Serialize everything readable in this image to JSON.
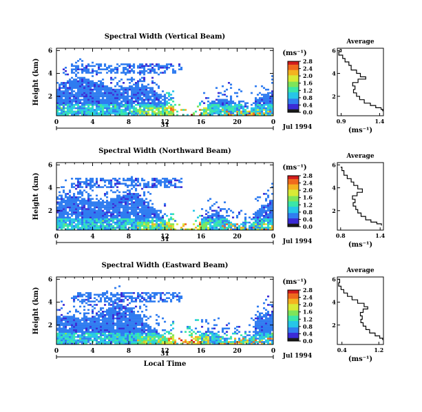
{
  "figure": {
    "xlabel": "Local Time",
    "date_label": "Jul 1994",
    "day_label": "31",
    "colorbar_unit": "(ms⁻¹)",
    "colors": {
      "colormap": [
        "#1a1a1a",
        "#3b2bd6",
        "#2f7cf0",
        "#27c6e8",
        "#39e6a8",
        "#7fe45a",
        "#d8ea35",
        "#f4b321",
        "#f06a1d",
        "#d11a1a"
      ]
    }
  },
  "chart_data": [
    {
      "type": "heatmap",
      "title": "Spectral Width (Vertical Beam)",
      "xlabel": "",
      "ylabel": "Height (km)",
      "x_ticks": [
        "0",
        "4",
        "8",
        "12",
        "16",
        "20",
        "0"
      ],
      "y_ticks": [
        "2",
        "4",
        "6"
      ],
      "xlim": [
        0,
        24
      ],
      "ylim": [
        0.3,
        6.2
      ],
      "colorbar": {
        "ticks": [
          "0.0",
          "0.4",
          "0.8",
          "1.2",
          "1.6",
          "2.0",
          "2.4",
          "2.8"
        ],
        "range": [
          0,
          2.8
        ]
      },
      "profile": {
        "title": "Average",
        "xlabel": "(ms⁻¹)",
        "x_ticks": [
          "0.9",
          "1.4"
        ],
        "xlim": [
          0.85,
          1.45
        ],
        "y_ticks": [
          "2",
          "4",
          "6"
        ],
        "ylim": [
          0.3,
          6.2
        ],
        "points": [
          [
            0.88,
            6.1
          ],
          [
            0.9,
            5.9
          ],
          [
            0.87,
            5.6
          ],
          [
            0.92,
            5.3
          ],
          [
            0.95,
            5.0
          ],
          [
            1.0,
            4.7
          ],
          [
            1.03,
            4.3
          ],
          [
            1.1,
            4.0
          ],
          [
            1.15,
            3.7
          ],
          [
            1.22,
            3.5
          ],
          [
            1.12,
            3.2
          ],
          [
            1.05,
            2.9
          ],
          [
            1.08,
            2.6
          ],
          [
            1.06,
            2.3
          ],
          [
            1.1,
            2.0
          ],
          [
            1.14,
            1.7
          ],
          [
            1.2,
            1.4
          ],
          [
            1.28,
            1.2
          ],
          [
            1.35,
            1.0
          ],
          [
            1.42,
            0.85
          ],
          [
            1.44,
            0.7
          ]
        ]
      }
    },
    {
      "type": "heatmap",
      "title": "Spectral Width (Northward Beam)",
      "xlabel": "",
      "ylabel": "Height (km)",
      "x_ticks": [
        "0",
        "4",
        "8",
        "12",
        "16",
        "20",
        "0"
      ],
      "y_ticks": [
        "2",
        "4",
        "6"
      ],
      "xlim": [
        0,
        24
      ],
      "ylim": [
        0.3,
        6.2
      ],
      "colorbar": {
        "ticks": [
          "0.0",
          "0.4",
          "0.8",
          "1.2",
          "1.6",
          "2.0",
          "2.4",
          "2.8"
        ],
        "range": [
          0,
          2.8
        ]
      },
      "profile": {
        "title": "Average",
        "xlabel": "(ms⁻¹)",
        "x_ticks": [
          "0.8",
          "1.4"
        ],
        "xlim": [
          0.75,
          1.45
        ],
        "y_ticks": [
          "2",
          "4",
          "6"
        ],
        "ylim": [
          0.3,
          6.2
        ],
        "points": [
          [
            0.8,
            5.8
          ],
          [
            0.82,
            5.5
          ],
          [
            0.85,
            5.1
          ],
          [
            0.9,
            4.8
          ],
          [
            0.96,
            4.5
          ],
          [
            1.0,
            4.2
          ],
          [
            1.06,
            3.9
          ],
          [
            1.13,
            3.6
          ],
          [
            1.05,
            3.3
          ],
          [
            0.98,
            3.0
          ],
          [
            1.02,
            2.7
          ],
          [
            0.99,
            2.4
          ],
          [
            1.03,
            2.1
          ],
          [
            1.06,
            1.8
          ],
          [
            1.11,
            1.5
          ],
          [
            1.18,
            1.2
          ],
          [
            1.26,
            1.0
          ],
          [
            1.35,
            0.85
          ],
          [
            1.42,
            0.7
          ]
        ]
      }
    },
    {
      "type": "heatmap",
      "title": "Spectral Width (Eastward Beam)",
      "xlabel": "Local Time",
      "ylabel": "Height (km)",
      "x_ticks": [
        "0",
        "4",
        "8",
        "12",
        "16",
        "20",
        "0"
      ],
      "y_ticks": [
        "2",
        "4",
        "6"
      ],
      "xlim": [
        0,
        24
      ],
      "ylim": [
        0.3,
        6.2
      ],
      "colorbar": {
        "ticks": [
          "0.0",
          "0.4",
          "0.8",
          "1.2",
          "1.6",
          "2.0",
          "2.4",
          "2.8"
        ],
        "range": [
          0,
          2.8
        ]
      },
      "profile": {
        "title": "Average",
        "xlabel": "(ms⁻¹)",
        "x_ticks": [
          "0.4",
          "1.2"
        ],
        "xlim": [
          0.3,
          1.3
        ],
        "y_ticks": [
          "2",
          "4",
          "6"
        ],
        "ylim": [
          0.3,
          6.2
        ],
        "points": [
          [
            0.32,
            6.0
          ],
          [
            0.35,
            5.7
          ],
          [
            0.33,
            5.4
          ],
          [
            0.38,
            5.1
          ],
          [
            0.44,
            4.8
          ],
          [
            0.52,
            4.5
          ],
          [
            0.62,
            4.2
          ],
          [
            0.74,
            3.9
          ],
          [
            0.88,
            3.6
          ],
          [
            0.96,
            3.4
          ],
          [
            0.86,
            3.1
          ],
          [
            0.8,
            2.8
          ],
          [
            0.84,
            2.5
          ],
          [
            0.81,
            2.2
          ],
          [
            0.86,
            1.9
          ],
          [
            0.92,
            1.6
          ],
          [
            1.0,
            1.3
          ],
          [
            1.12,
            1.05
          ],
          [
            1.22,
            0.85
          ],
          [
            1.28,
            0.7
          ]
        ]
      }
    }
  ]
}
